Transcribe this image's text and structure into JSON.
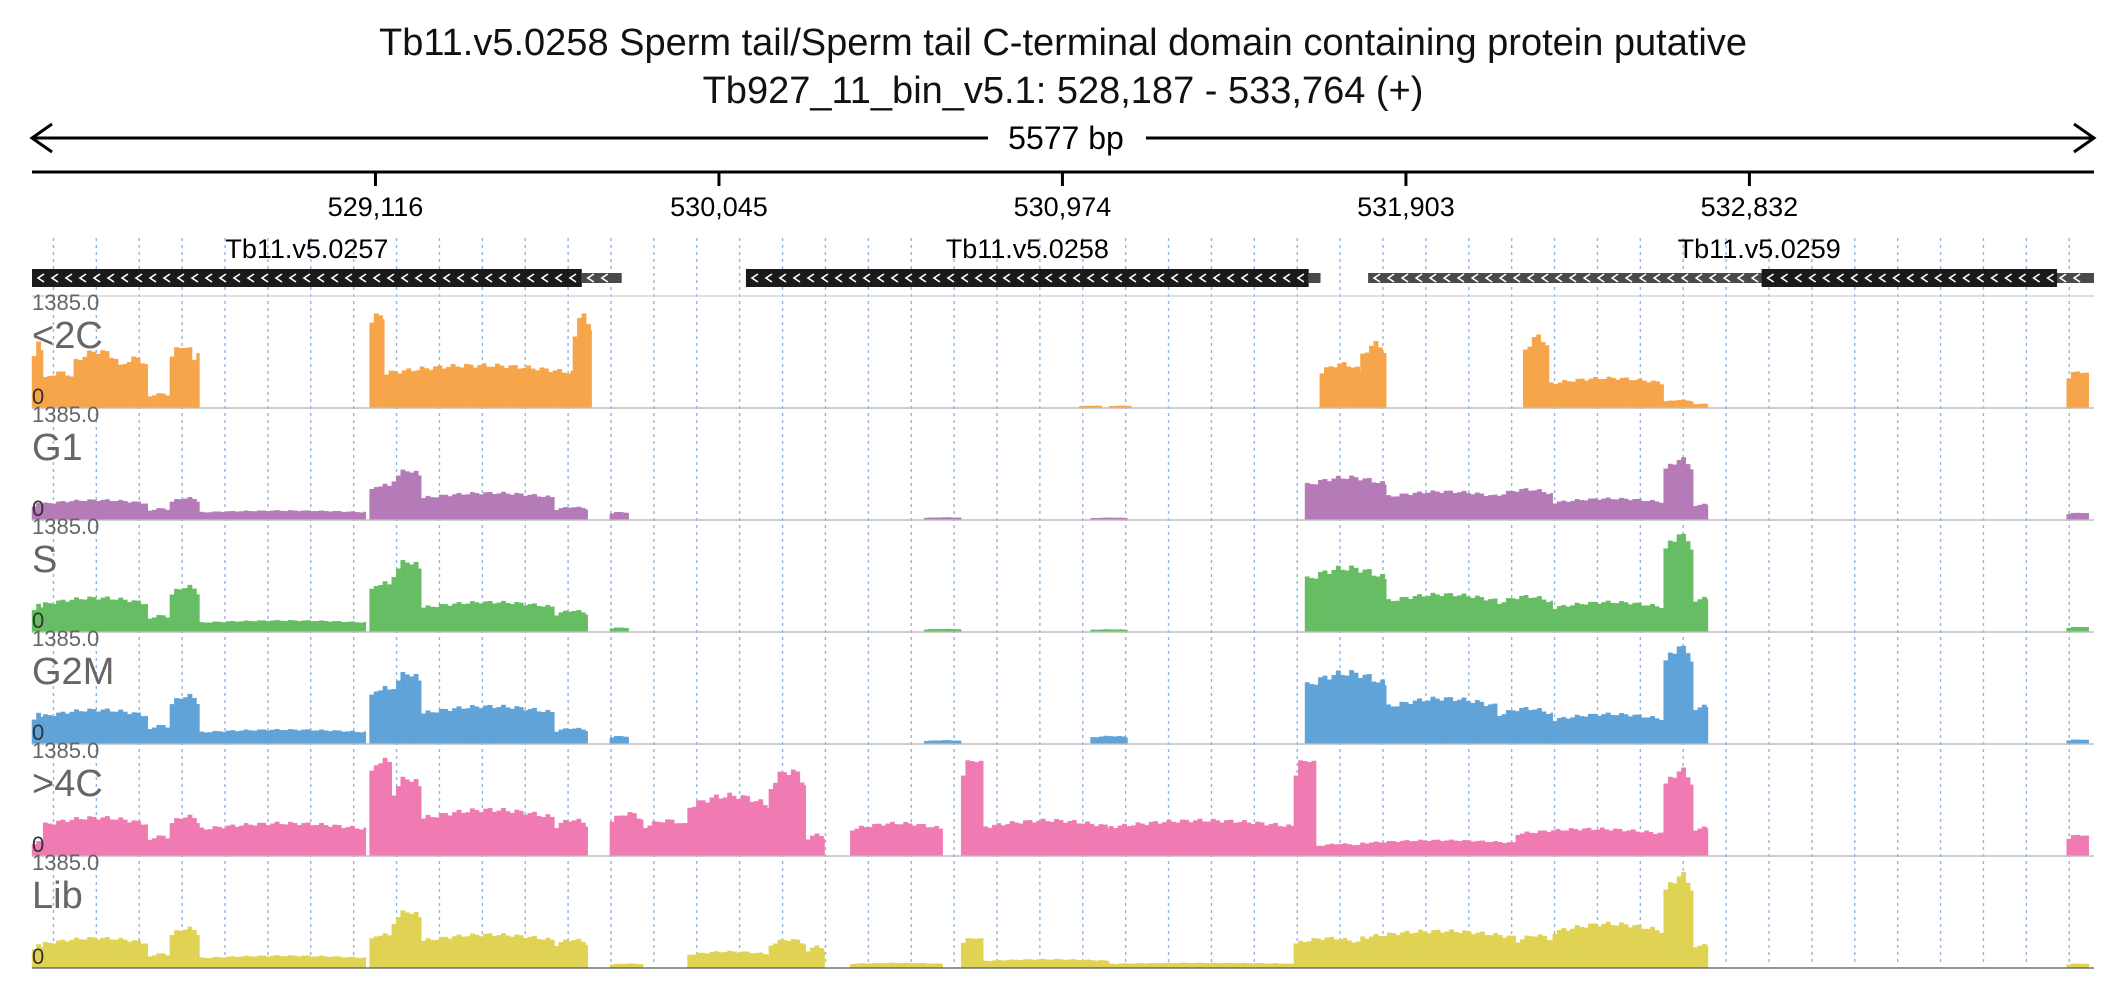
{
  "title": {
    "line1": "Tb11.v5.0258  Sperm tail/Sperm tail C-terminal domain containing protein  putative",
    "line2": "Tb927_11_bin_v5.1: 528,187 - 533,764 (+)"
  },
  "region": {
    "start": 528187,
    "end": 533764,
    "span_label": "5577 bp"
  },
  "ruler": {
    "ticks": [
      {
        "pos": 529116,
        "label": "529,116"
      },
      {
        "pos": 530045,
        "label": "530,045"
      },
      {
        "pos": 530974,
        "label": "530,974"
      },
      {
        "pos": 531903,
        "label": "531,903"
      },
      {
        "pos": 532832,
        "label": "532,832"
      }
    ]
  },
  "genes": [
    {
      "name": "Tb11.v5.0257",
      "strand": "-",
      "start": 528187,
      "end": 529674,
      "utr_end": 529782,
      "utr_start": 529674
    },
    {
      "name": "Tb11.v5.0258",
      "strand": "-",
      "start": 530118,
      "end": 531640,
      "utr_end": 531672,
      "utr_start": 531640
    },
    {
      "name": "Tb11.v5.0259",
      "strand": "-",
      "start": 531752,
      "end": 533764,
      "cds_start": 532865,
      "cds_end": 533664
    }
  ],
  "tracks": [
    {
      "label": "<2C",
      "color": "#f7a54a",
      "max_label": "1385.0",
      "min_label": "0",
      "max": 1385
    },
    {
      "label": "G1",
      "color": "#b57ab8",
      "max_label": "1385.0",
      "min_label": "0",
      "max": 1385
    },
    {
      "label": "S",
      "color": "#66bd63",
      "max_label": "1385.0",
      "min_label": "0",
      "max": 1385
    },
    {
      "label": "G2M",
      "color": "#5fa3d9",
      "max_label": "1385.0",
      "min_label": "0",
      "max": 1385
    },
    {
      "label": ">4C",
      "color": "#f07ab2",
      "max_label": "1385.0",
      "min_label": "0",
      "max": 1385
    },
    {
      "label": "Lib",
      "color": "#e0d354",
      "max_label": "1385.0",
      "min_label": "0",
      "max": 1385
    }
  ],
  "coverage_segments": {
    "<2C": [
      [
        528187,
        528217,
        900
      ],
      [
        528217,
        528300,
        500
      ],
      [
        528300,
        528420,
        800
      ],
      [
        528420,
        528500,
        700
      ],
      [
        528500,
        528560,
        200
      ],
      [
        528560,
        528620,
        880
      ],
      [
        528620,
        528640,
        820
      ],
      [
        529100,
        529140,
        1385
      ],
      [
        529140,
        529650,
        600
      ],
      [
        529650,
        529700,
        1300
      ],
      [
        531670,
        531780,
        620
      ],
      [
        531780,
        531850,
        900
      ],
      [
        532220,
        532290,
        1000
      ],
      [
        532290,
        532600,
        420
      ],
      [
        532600,
        532680,
        110
      ],
      [
        532680,
        532720,
        60
      ],
      [
        531020,
        531080,
        30
      ],
      [
        531100,
        531160,
        30
      ],
      [
        533690,
        533750,
        520
      ]
    ],
    "G1": [
      [
        528187,
        528217,
        230
      ],
      [
        528217,
        528500,
        280
      ],
      [
        528500,
        528560,
        160
      ],
      [
        528560,
        528640,
        310
      ],
      [
        528640,
        529090,
        130
      ],
      [
        529100,
        529160,
        500
      ],
      [
        529160,
        529240,
        700
      ],
      [
        529240,
        529600,
        380
      ],
      [
        529600,
        529690,
        180
      ],
      [
        529750,
        529800,
        110
      ],
      [
        530600,
        530700,
        35
      ],
      [
        531050,
        531150,
        30
      ],
      [
        531630,
        531850,
        600
      ],
      [
        531850,
        532150,
        400
      ],
      [
        532150,
        532300,
        430
      ],
      [
        532300,
        532600,
        300
      ],
      [
        532600,
        532680,
        850
      ],
      [
        532680,
        532720,
        230
      ],
      [
        533690,
        533750,
        100
      ]
    ],
    "S": [
      [
        528187,
        528217,
        380
      ],
      [
        528217,
        528500,
        480
      ],
      [
        528500,
        528560,
        230
      ],
      [
        528560,
        528640,
        640
      ],
      [
        528640,
        529090,
        160
      ],
      [
        529100,
        529160,
        700
      ],
      [
        529160,
        529240,
        1000
      ],
      [
        529240,
        529600,
        420
      ],
      [
        529600,
        529690,
        300
      ],
      [
        529750,
        529800,
        60
      ],
      [
        530600,
        530700,
        40
      ],
      [
        531050,
        531150,
        35
      ],
      [
        531630,
        531850,
        900
      ],
      [
        531850,
        532150,
        530
      ],
      [
        532150,
        532300,
        500
      ],
      [
        532300,
        532600,
        420
      ],
      [
        532600,
        532680,
        1385
      ],
      [
        532680,
        532720,
        500
      ],
      [
        533690,
        533750,
        70
      ]
    ],
    "G2M": [
      [
        528187,
        528217,
        420
      ],
      [
        528217,
        528500,
        480
      ],
      [
        528500,
        528560,
        260
      ],
      [
        528560,
        528640,
        680
      ],
      [
        528640,
        529090,
        200
      ],
      [
        529100,
        529160,
        800
      ],
      [
        529160,
        529240,
        1000
      ],
      [
        529240,
        529600,
        530
      ],
      [
        529600,
        529690,
        220
      ],
      [
        529750,
        529800,
        110
      ],
      [
        530600,
        530700,
        50
      ],
      [
        531050,
        531150,
        110
      ],
      [
        531630,
        531850,
        1000
      ],
      [
        531850,
        532150,
        640
      ],
      [
        532150,
        532300,
        500
      ],
      [
        532300,
        532600,
        420
      ],
      [
        532600,
        532680,
        1385
      ],
      [
        532680,
        532720,
        560
      ],
      [
        533690,
        533750,
        60
      ]
    ],
    ">4C": [
      [
        528187,
        528217,
        200
      ],
      [
        528217,
        528500,
        540
      ],
      [
        528500,
        528560,
        280
      ],
      [
        528560,
        528640,
        560
      ],
      [
        528640,
        529090,
        460
      ],
      [
        529100,
        529160,
        1385
      ],
      [
        529160,
        529240,
        1100
      ],
      [
        529240,
        529600,
        650
      ],
      [
        529600,
        529690,
        510
      ],
      [
        529750,
        529840,
        600
      ],
      [
        529840,
        529960,
        500
      ],
      [
        529960,
        530180,
        850
      ],
      [
        530180,
        530280,
        1200
      ],
      [
        530280,
        530330,
        300
      ],
      [
        530400,
        530650,
        460
      ],
      [
        530700,
        530760,
        1385
      ],
      [
        530760,
        531100,
        500
      ],
      [
        531100,
        531600,
        500
      ],
      [
        531600,
        531660,
        1385
      ],
      [
        531660,
        531780,
        170
      ],
      [
        531780,
        532200,
        220
      ],
      [
        532200,
        532600,
        380
      ],
      [
        532600,
        532680,
        1200
      ],
      [
        532680,
        532720,
        420
      ],
      [
        533690,
        533750,
        300
      ]
    ],
    "Lib": [
      [
        528187,
        528217,
        320
      ],
      [
        528217,
        528500,
        420
      ],
      [
        528500,
        528560,
        200
      ],
      [
        528560,
        528640,
        560
      ],
      [
        528640,
        529090,
        170
      ],
      [
        529100,
        529160,
        480
      ],
      [
        529160,
        529240,
        800
      ],
      [
        529240,
        529600,
        470
      ],
      [
        529600,
        529690,
        400
      ],
      [
        529750,
        529840,
        60
      ],
      [
        529960,
        530180,
        230
      ],
      [
        530180,
        530280,
        400
      ],
      [
        530280,
        530330,
        300
      ],
      [
        530400,
        530650,
        70
      ],
      [
        530700,
        530760,
        430
      ],
      [
        530760,
        531100,
        120
      ],
      [
        531100,
        531600,
        70
      ],
      [
        531600,
        531780,
        420
      ],
      [
        531780,
        532200,
        520
      ],
      [
        532200,
        532300,
        460
      ],
      [
        532300,
        532600,
        620
      ],
      [
        532600,
        532680,
        1300
      ],
      [
        532680,
        532720,
        340
      ],
      [
        533690,
        533750,
        60
      ]
    ]
  }
}
